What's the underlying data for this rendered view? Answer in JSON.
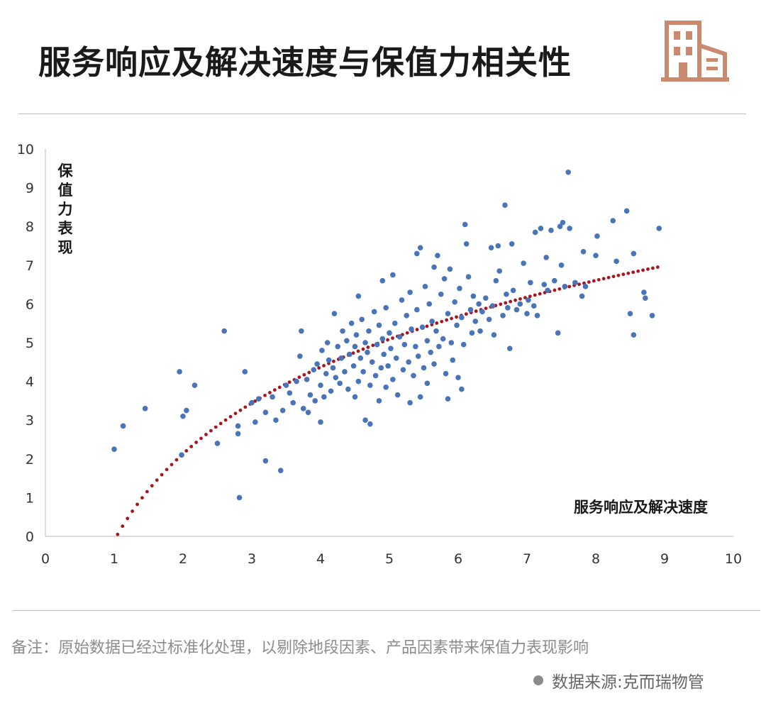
{
  "header": {
    "title": "服务响应及解决速度与保值力相关性",
    "logo_icon": "building-icon",
    "logo_color": "#c98a6e"
  },
  "chart_data": {
    "type": "scatter",
    "xlabel": "服务响应及解决速度",
    "ylabel": "保值力表现",
    "xlim": [
      0,
      10
    ],
    "ylim": [
      0,
      10
    ],
    "x_ticks": [
      "0",
      "1",
      "2",
      "3",
      "4",
      "5",
      "6",
      "7",
      "8",
      "9",
      "10"
    ],
    "y_ticks": [
      "0",
      "1",
      "2",
      "3",
      "4",
      "5",
      "6",
      "7",
      "8",
      "9",
      "10"
    ],
    "grid": false,
    "point_color": "#4a74b8",
    "trend_color": "#a8151c",
    "trend": {
      "type": "logarithmic",
      "x_from": 1.05,
      "x_to": 8.9,
      "y_at_x_from": 0.05,
      "y_at_x_to": 6.95
    },
    "points": [
      [
        1.0,
        2.25
      ],
      [
        1.13,
        2.85
      ],
      [
        1.45,
        3.3
      ],
      [
        1.95,
        4.25
      ],
      [
        2.0,
        3.1
      ],
      [
        2.05,
        3.25
      ],
      [
        2.17,
        3.9
      ],
      [
        1.98,
        2.1
      ],
      [
        2.6,
        5.3
      ],
      [
        2.5,
        2.4
      ],
      [
        2.8,
        2.85
      ],
      [
        2.8,
        2.65
      ],
      [
        2.82,
        1.0
      ],
      [
        2.9,
        4.25
      ],
      [
        3.0,
        3.45
      ],
      [
        3.05,
        2.95
      ],
      [
        3.1,
        3.55
      ],
      [
        3.2,
        1.95
      ],
      [
        3.2,
        3.2
      ],
      [
        3.3,
        3.6
      ],
      [
        3.35,
        3.0
      ],
      [
        3.42,
        1.7
      ],
      [
        3.45,
        3.25
      ],
      [
        3.5,
        3.9
      ],
      [
        3.55,
        3.7
      ],
      [
        3.6,
        3.45
      ],
      [
        3.65,
        4.0
      ],
      [
        3.7,
        4.65
      ],
      [
        3.72,
        5.3
      ],
      [
        3.75,
        3.3
      ],
      [
        3.8,
        4.05
      ],
      [
        3.82,
        3.2
      ],
      [
        3.85,
        3.65
      ],
      [
        3.9,
        4.3
      ],
      [
        3.92,
        3.5
      ],
      [
        3.95,
        4.45
      ],
      [
        4.0,
        2.95
      ],
      [
        4.0,
        3.9
      ],
      [
        4.02,
        4.8
      ],
      [
        4.05,
        3.6
      ],
      [
        4.08,
        4.2
      ],
      [
        4.1,
        5.0
      ],
      [
        4.12,
        4.55
      ],
      [
        4.15,
        3.75
      ],
      [
        4.18,
        4.35
      ],
      [
        4.2,
        5.75
      ],
      [
        4.22,
        4.1
      ],
      [
        4.25,
        4.9
      ],
      [
        4.28,
        3.95
      ],
      [
        4.3,
        4.6
      ],
      [
        4.32,
        5.3
      ],
      [
        4.35,
        4.25
      ],
      [
        4.38,
        5.05
      ],
      [
        4.4,
        3.8
      ],
      [
        4.42,
        4.7
      ],
      [
        4.45,
        5.5
      ],
      [
        4.48,
        4.4
      ],
      [
        4.5,
        4.9
      ],
      [
        4.5,
        3.6
      ],
      [
        4.52,
        5.2
      ],
      [
        4.55,
        4.0
      ],
      [
        4.55,
        6.2
      ],
      [
        4.58,
        4.6
      ],
      [
        4.6,
        5.6
      ],
      [
        4.62,
        4.25
      ],
      [
        4.65,
        5.0
      ],
      [
        4.65,
        3.0
      ],
      [
        4.68,
        4.75
      ],
      [
        4.7,
        5.3
      ],
      [
        4.72,
        3.9
      ],
      [
        4.72,
        2.9
      ],
      [
        4.75,
        4.5
      ],
      [
        4.78,
        5.8
      ],
      [
        4.8,
        4.15
      ],
      [
        4.82,
        4.95
      ],
      [
        4.85,
        5.45
      ],
      [
        4.85,
        3.5
      ],
      [
        4.88,
        4.35
      ],
      [
        4.9,
        6.6
      ],
      [
        4.9,
        5.1
      ],
      [
        4.92,
        4.7
      ],
      [
        4.95,
        5.9
      ],
      [
        4.95,
        3.85
      ],
      [
        4.98,
        4.4
      ],
      [
        5.0,
        5.25
      ],
      [
        5.02,
        4.85
      ],
      [
        5.05,
        6.75
      ],
      [
        5.05,
        4.05
      ],
      [
        5.08,
        5.5
      ],
      [
        5.1,
        4.6
      ],
      [
        5.12,
        3.65
      ],
      [
        5.15,
        5.15
      ],
      [
        5.18,
        6.1
      ],
      [
        5.2,
        4.3
      ],
      [
        5.22,
        4.95
      ],
      [
        5.25,
        5.7
      ],
      [
        5.28,
        4.5
      ],
      [
        5.3,
        6.3
      ],
      [
        5.3,
        3.45
      ],
      [
        5.32,
        5.35
      ],
      [
        5.35,
        4.15
      ],
      [
        5.38,
        4.9
      ],
      [
        5.4,
        5.85
      ],
      [
        5.4,
        7.3
      ],
      [
        5.42,
        4.65
      ],
      [
        5.45,
        7.45
      ],
      [
        5.45,
        3.6
      ],
      [
        5.48,
        5.4
      ],
      [
        5.5,
        4.35
      ],
      [
        5.52,
        6.45
      ],
      [
        5.55,
        5.05
      ],
      [
        5.55,
        3.95
      ],
      [
        5.58,
        6.0
      ],
      [
        5.6,
        4.75
      ],
      [
        5.62,
        5.55
      ],
      [
        5.65,
        6.95
      ],
      [
        5.65,
        4.45
      ],
      [
        5.68,
        5.3
      ],
      [
        5.7,
        7.25
      ],
      [
        5.72,
        4.9
      ],
      [
        5.75,
        6.25
      ],
      [
        5.78,
        5.1
      ],
      [
        5.8,
        6.65
      ],
      [
        5.82,
        4.2
      ],
      [
        5.85,
        5.75
      ],
      [
        5.85,
        3.55
      ],
      [
        5.88,
        6.9
      ],
      [
        5.9,
        5.0
      ],
      [
        5.92,
        4.55
      ],
      [
        5.95,
        6.05
      ],
      [
        5.98,
        5.45
      ],
      [
        6.0,
        4.1
      ],
      [
        6.02,
        6.4
      ],
      [
        6.05,
        5.65
      ],
      [
        6.05,
        3.8
      ],
      [
        6.08,
        4.95
      ],
      [
        6.1,
        8.05
      ],
      [
        6.12,
        7.55
      ],
      [
        6.15,
        6.7
      ],
      [
        6.18,
        5.85
      ],
      [
        6.2,
        5.25
      ],
      [
        6.22,
        6.2
      ],
      [
        6.25,
        5.55
      ],
      [
        6.3,
        6.0
      ],
      [
        6.32,
        5.3
      ],
      [
        6.35,
        5.8
      ],
      [
        6.4,
        6.15
      ],
      [
        6.45,
        5.6
      ],
      [
        6.48,
        7.45
      ],
      [
        6.5,
        5.95
      ],
      [
        6.52,
        5.2
      ],
      [
        6.55,
        6.6
      ],
      [
        6.58,
        7.5
      ],
      [
        6.6,
        6.85
      ],
      [
        6.65,
        5.7
      ],
      [
        6.68,
        8.55
      ],
      [
        6.7,
        6.25
      ],
      [
        6.72,
        5.9
      ],
      [
        6.75,
        4.85
      ],
      [
        6.78,
        7.55
      ],
      [
        6.8,
        6.35
      ],
      [
        6.85,
        5.85
      ],
      [
        6.9,
        6.0
      ],
      [
        6.95,
        7.05
      ],
      [
        7.0,
        5.75
      ],
      [
        7.02,
        6.1
      ],
      [
        7.05,
        6.55
      ],
      [
        7.1,
        5.95
      ],
      [
        7.12,
        7.85
      ],
      [
        7.15,
        5.7
      ],
      [
        7.2,
        7.95
      ],
      [
        7.25,
        6.5
      ],
      [
        7.28,
        7.2
      ],
      [
        7.3,
        6.35
      ],
      [
        7.35,
        7.9
      ],
      [
        7.4,
        6.6
      ],
      [
        7.45,
        5.25
      ],
      [
        7.48,
        8.0
      ],
      [
        7.5,
        7.0
      ],
      [
        7.52,
        8.1
      ],
      [
        7.55,
        6.45
      ],
      [
        7.6,
        9.4
      ],
      [
        7.62,
        7.95
      ],
      [
        7.7,
        6.55
      ],
      [
        7.8,
        6.2
      ],
      [
        7.82,
        7.35
      ],
      [
        7.85,
        6.45
      ],
      [
        8.0,
        7.25
      ],
      [
        8.02,
        7.75
      ],
      [
        8.25,
        8.15
      ],
      [
        8.3,
        7.1
      ],
      [
        8.45,
        8.4
      ],
      [
        8.5,
        5.75
      ],
      [
        8.55,
        5.2
      ],
      [
        8.55,
        7.3
      ],
      [
        8.7,
        6.3
      ],
      [
        8.72,
        6.15
      ],
      [
        8.82,
        5.7
      ],
      [
        8.92,
        7.95
      ]
    ]
  },
  "footer": {
    "note": "备注：原始数据已经过标准化处理，以剔除地段因素、产品因素带来保值力表现影响",
    "source": "数据来源:克而瑞物管"
  }
}
